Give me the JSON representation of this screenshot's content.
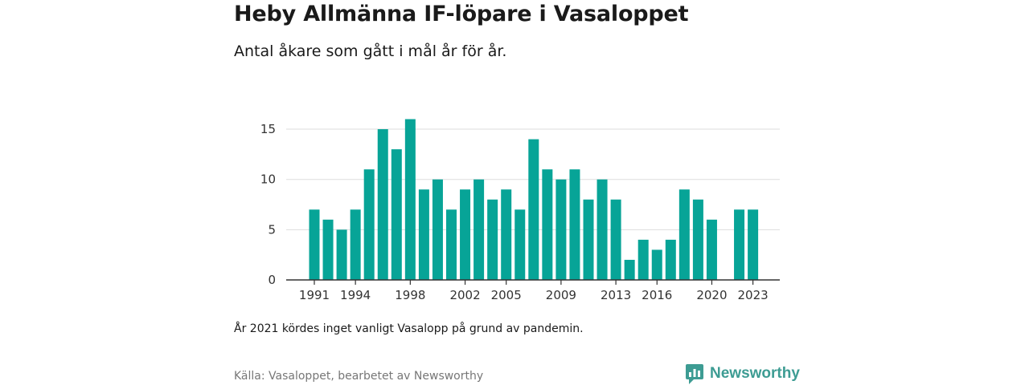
{
  "title": "Heby Allmänna IF-löpare i Vasaloppet",
  "subtitle": "Antal åkare som gått i mål år för år.",
  "note": "År 2021 kördes inget vanligt Vasalopp på grund av pandemin.",
  "source": "Källa: Vasaloppet, bearbetet av Newsworthy",
  "brand": {
    "name": "Newsworthy",
    "icon": "newsworthy-logo-icon",
    "color": "#3d9c93"
  },
  "chart_data": {
    "type": "bar",
    "color": "#07a497",
    "categories": [
      1991,
      1992,
      1993,
      1994,
      1995,
      1996,
      1997,
      1998,
      1999,
      2000,
      2001,
      2002,
      2003,
      2004,
      2005,
      2006,
      2007,
      2008,
      2009,
      2010,
      2011,
      2012,
      2013,
      2014,
      2015,
      2016,
      2017,
      2018,
      2019,
      2020,
      2021,
      2022,
      2023
    ],
    "values": [
      7,
      6,
      5,
      7,
      11,
      15,
      13,
      16,
      9,
      10,
      7,
      9,
      10,
      8,
      9,
      7,
      14,
      11,
      10,
      11,
      8,
      10,
      8,
      2,
      4,
      3,
      4,
      9,
      8,
      6,
      null,
      7,
      7
    ],
    "x_ticks": [
      "1991",
      "1994",
      "1998",
      "2002",
      "2005",
      "2009",
      "2013",
      "2016",
      "2020",
      "2023"
    ],
    "y_ticks": [
      0,
      5,
      10,
      15
    ],
    "ylim": [
      0,
      17
    ],
    "grid": true
  }
}
